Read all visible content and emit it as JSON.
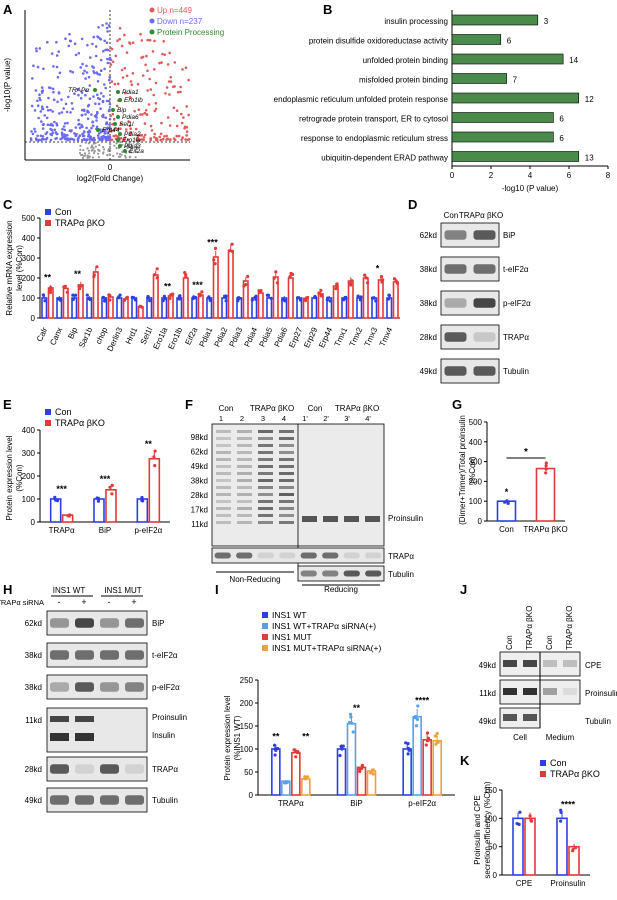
{
  "panels": [
    "A",
    "B",
    "C",
    "D",
    "E",
    "F",
    "G",
    "H",
    "I",
    "J",
    "K"
  ],
  "panelA": {
    "ylabel": "-log10(P value)",
    "xlabel": "log2(Fold Change)",
    "xtick": "0",
    "legend": [
      {
        "label": "Up n=449",
        "color": "#e05a5a"
      },
      {
        "label": "Down n=237",
        "color": "#6b6bef"
      },
      {
        "label": "Protein Processing",
        "color": "#2e8b2e"
      }
    ],
    "genes": [
      "TRAPα",
      "Pdia1",
      "Ero1lb",
      "Bip",
      "Pdia6",
      "Sel1l",
      "Erp44",
      "Pdia2",
      "Pdia3",
      "Ero1la",
      "Eif2a"
    ]
  },
  "chart_data": [
    {
      "panel": "B",
      "type": "bar",
      "orientation": "horizontal",
      "categories": [
        "insulin processing",
        "protein disulfide oxidoreductase activity",
        "unfolded protein binding",
        "misfolded protein binding",
        "endoplasmic reticulum unfolded protein response",
        "retrograde protein transport, ER to cytosol",
        "response to endoplasmic reticulum stress",
        "ubiquitin-dependent ERAD pathway"
      ],
      "values": [
        4.4,
        2.5,
        5.7,
        2.8,
        6.5,
        5.2,
        5.2,
        6.5
      ],
      "data_labels": [
        "3",
        "6",
        "14",
        "7",
        "12",
        "6",
        "6",
        "13"
      ],
      "xlabel": "-log10 (P value)",
      "xticks": [
        "0",
        "2",
        "4",
        "6",
        "8"
      ],
      "xlim": [
        0,
        8
      ],
      "color": "#4a8a4a"
    },
    {
      "panel": "C",
      "type": "bar",
      "categories": [
        "Calr",
        "Canx",
        "Bip",
        "Sar1b",
        "chop",
        "Derlin3",
        "Hrd1",
        "Sel1l",
        "Ero1la",
        "Ero1lb",
        "Eif2a",
        "Pdia1",
        "Pdia2",
        "Pdia3",
        "Pdia4",
        "Pdia5",
        "Pdia6",
        "Erp27",
        "Erp29",
        "Erp44",
        "Tmx1",
        "Tmx2",
        "Tmx3",
        "Tmx4"
      ],
      "series": [
        {
          "name": "Con",
          "color": "#2d3fe0",
          "values": [
            100,
            100,
            100,
            100,
            100,
            100,
            100,
            100,
            100,
            100,
            100,
            100,
            100,
            100,
            100,
            100,
            100,
            100,
            100,
            100,
            100,
            100,
            100,
            100
          ]
        },
        {
          "name": "TRAPα βKO",
          "color": "#e23a3a",
          "values": [
            150,
            148,
            165,
            230,
            105,
            95,
            55,
            215,
            110,
            200,
            115,
            305,
            335,
            185,
            125,
            205,
            200,
            98,
            120,
            160,
            185,
            200,
            190,
            180
          ]
        }
      ],
      "significance": [
        "**",
        "",
        "**",
        "",
        "",
        "",
        "",
        "",
        "**",
        "",
        "***",
        "***",
        "",
        "",
        "",
        "",
        "",
        "",
        "",
        "",
        "",
        "",
        "*",
        ""
      ],
      "ylabel": "Relative mRNA expression level (%Con)",
      "yticks": [
        "0",
        "100",
        "200",
        "300",
        "400",
        "500"
      ],
      "ylim": [
        0,
        500
      ]
    },
    {
      "panel": "E",
      "type": "bar",
      "categories": [
        "TRAPα",
        "BiP",
        "p-eIF2α"
      ],
      "series": [
        {
          "name": "Con",
          "color": "#2d3fe0",
          "values": [
            100,
            100,
            100
          ]
        },
        {
          "name": "TRAPα βKO",
          "color": "#e23a3a",
          "values": [
            30,
            140,
            275
          ]
        }
      ],
      "significance": [
        "***",
        "***",
        "**"
      ],
      "ylabel": "Protein expression level (%Con)",
      "yticks": [
        "0",
        "100",
        "200",
        "300",
        "400"
      ],
      "ylim": [
        0,
        400
      ]
    },
    {
      "panel": "G",
      "type": "bar",
      "categories": [
        "Con",
        "TRAPα βKO"
      ],
      "values": [
        100,
        265
      ],
      "colors": [
        "#2d3fe0",
        "#e23a3a"
      ],
      "significance": "*",
      "ylabel": "(Dimer+Trimer)/Total proinsulin (%Con)",
      "yticks": [
        "0",
        "100",
        "200",
        "300",
        "400",
        "500"
      ],
      "ylim": [
        0,
        500
      ]
    },
    {
      "panel": "I",
      "type": "bar",
      "categories": [
        "TRAPα",
        "BiP",
        "p-eIF2α"
      ],
      "series": [
        {
          "name": "INS1 WT",
          "color": "#2d3fe0",
          "values": [
            100,
            100,
            100
          ]
        },
        {
          "name": "INS1 WT+TRAPα siRNA(+)",
          "color": "#5aa0e8",
          "values": [
            30,
            155,
            170
          ]
        },
        {
          "name": "INS1 MUT",
          "color": "#e23a3a",
          "values": [
            92,
            60,
            120
          ]
        },
        {
          "name": "INS1 MUT+TRAPα siRNA(+)",
          "color": "#f0a040",
          "values": [
            35,
            52,
            118
          ]
        }
      ],
      "significance": [
        [
          "**",
          "**"
        ],
        [
          "**"
        ],
        [
          "****"
        ]
      ],
      "ylabel": "Protein expression level (%INS1 WT)",
      "yticks": [
        "0",
        "50",
        "100",
        "150",
        "200",
        "250"
      ],
      "ylim": [
        0,
        250
      ]
    },
    {
      "panel": "K",
      "type": "bar",
      "categories": [
        "CPE",
        "Proinsulin"
      ],
      "series": [
        {
          "name": "Con",
          "color": "#2d3fe0",
          "values": [
            100,
            100
          ]
        },
        {
          "name": "TRAPα βKO",
          "color": "#e23a3a",
          "values": [
            100,
            50
          ]
        }
      ],
      "significance": [
        "",
        "****"
      ],
      "ylabel": "Proinsulin and CPE secretion efficiency (%Con)",
      "yticks": [
        "0",
        "50",
        "100",
        "150"
      ],
      "ylim": [
        0,
        150
      ]
    }
  ],
  "panelD": {
    "lanes": [
      "Con",
      "TRAPα βKO"
    ],
    "mw": [
      "62kd",
      "38kd",
      "38kd",
      "28kd",
      "49kd"
    ],
    "bands": [
      "BiP",
      "t-eIF2α",
      "p-eIF2α",
      "TRAPα",
      "Tubulin"
    ]
  },
  "panelF": {
    "groups": [
      "Con",
      "TRAPα βKO",
      "Con",
      "TRAPα βKO"
    ],
    "lanes": [
      "1",
      "2",
      "3",
      "4",
      "1'",
      "2'",
      "3'",
      "4'"
    ],
    "mw": [
      "98kd",
      "62kd",
      "49kd",
      "38kd",
      "28kd",
      "17kd",
      "11kd"
    ],
    "right_labels": [
      "Proinsulin",
      "TRAPα",
      "Tubulin"
    ],
    "conditions": [
      "Non-Reducing",
      "Reducing"
    ]
  },
  "panelH": {
    "groups": [
      "INS1 WT",
      "INS1 MUT"
    ],
    "siRNA_label": "TRAPα siRNA",
    "signs": [
      "-",
      "+",
      "-",
      "+"
    ],
    "mw": [
      "62kd",
      "38kd",
      "38kd",
      "11kd",
      "28kd",
      "49kd"
    ],
    "bands": [
      "BiP",
      "t-eIF2α",
      "p-eIF2α",
      "Proinsulin",
      "Insulin",
      "TRAPα",
      "Tubulin"
    ]
  },
  "panelJ": {
    "lanes": [
      "Con",
      "TRAPα βKO",
      "Con",
      "TRAPα βKO"
    ],
    "mw": [
      "49kd",
      "11kd",
      "49kd"
    ],
    "bands": [
      "CPE",
      "Proinsulin",
      "Tubulin"
    ],
    "fractions": [
      "Cell",
      "Medium"
    ]
  }
}
